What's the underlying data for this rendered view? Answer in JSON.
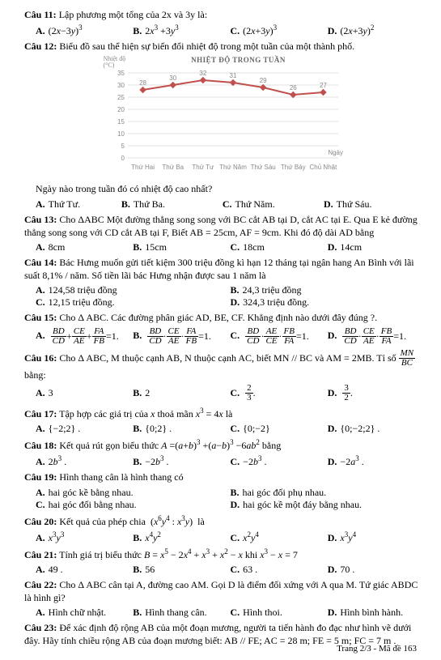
{
  "q11": {
    "header": "Câu 11:",
    "text": "Lập phương một tổng của 2x  và 3y  là:",
    "opts": [
      "(2x−3y)³",
      "2x³ +3y³",
      "(2x+3y)³",
      "(2x+3y)²"
    ]
  },
  "q12": {
    "header": "Câu 12:",
    "text": "Biểu đồ sau thể hiện sự biến đổi nhiệt độ trong một tuần của một thành phố.",
    "chart": {
      "title": "NHIỆT ĐỘ TRONG TUẦN",
      "y_label": "Nhiệt độ (°C)",
      "x_label": "Ngày",
      "categories": [
        "Thứ Hai",
        "Thứ Ba",
        "Thứ Tư",
        "Thứ Năm",
        "Thứ Sáu",
        "Thứ Bảy",
        "Chủ Nhật"
      ],
      "values": [
        28,
        30,
        32,
        31,
        29,
        26,
        27
      ],
      "ylim": [
        0,
        35
      ],
      "ytick_step": 5,
      "line_color": "#c0504d",
      "grid_color": "#d9d9d9",
      "marker_color": "#c0504d",
      "background": "#ffffff",
      "label_color": "#808080",
      "label_fontsize": 8
    },
    "after": "Ngày nào trong tuần đó có nhiệt độ cao nhất?",
    "opts": [
      "Thứ Tư.",
      "Thứ Ba.",
      "Thứ Năm.",
      "Thứ Sáu."
    ]
  },
  "q13": {
    "header": "Câu 13:",
    "text": "Cho ΔABC  Một đường thẳng song song với BC cắt AB tại D, cắt AC tại E. Qua E kẻ đường thẳng song song với CD cắt AB tại F, Biết AB = 25cm, AF = 9cm. Khi đó độ dài AD bằng",
    "opts": [
      "8cm",
      "15cm",
      "18cm",
      "14cm"
    ]
  },
  "q14": {
    "header": "Câu 14:",
    "text": "Bác Hưng muốn gửi tiết kiệm 300 triệu đồng kì hạn 12 tháng tại ngân hang An Bình với lãi suất 8,1% / năm. Số tiền lãi bác Hưng nhận được sau 1 năm là",
    "opts": [
      "124,58 triệu đồng",
      "24,3 triệu đồng",
      "12,15 triệu đồng.",
      "324,3 triệu đồng."
    ]
  },
  "q15": {
    "header": "Câu 15:",
    "text": "Cho Δ ABC. Các đường phân giác AD, BE, CF. Khẳng định nào dưới đây đúng ?.",
    "opts": [
      {
        "a": [
          "BD",
          "CD"
        ],
        "b": [
          "CE",
          "AE"
        ],
        "c": [
          "FA",
          "FB"
        ],
        "eq": "=1."
      },
      {
        "a": [
          "BD",
          "CD"
        ],
        "b": [
          "CE",
          "AE"
        ],
        "c": [
          "FA",
          "FB"
        ],
        "dot": "·",
        "eq": "=1."
      },
      {
        "a": [
          "BD",
          "CD"
        ],
        "b": [
          "AE",
          "CE"
        ],
        "c": [
          "FB",
          "FA"
        ],
        "dot": "·",
        "eq": "=1."
      },
      {
        "a": [
          "BD",
          "CD"
        ],
        "b": [
          "CE",
          "AE"
        ],
        "c": [
          "FB",
          "FA"
        ],
        "dot": "·",
        "eq": "=1."
      }
    ]
  },
  "q16": {
    "header": "Câu 16:",
    "text": "Cho Δ ABC, M thuộc cạnh AB, N thuộc cạnh AC, biết MN // BC và AM = 2MB.   Tỉ số ",
    "frac": [
      "MN",
      "BC"
    ],
    "tail": " bằng:",
    "opts": [
      "3",
      "2",
      "⅔ fraction",
      "3/2 fraction"
    ],
    "optC_num": "2",
    "optC_den": "3",
    "optD_num": "3",
    "optD_den": "2"
  },
  "q17": {
    "header": "Câu 17:",
    "text": "Tập hợp các giá trị của  x  thoả mãn  x³ = 4x  là",
    "opts": [
      "{−2;2} .",
      "{0;2} .",
      "{0;−2}",
      "{0;−2;2} ."
    ]
  },
  "q18": {
    "header": "Câu 18:",
    "text": "Kết quả rút gọn biểu thức  A =(a+b)³ +(a−b)³ −6ab²  bằng",
    "opts": [
      "2b³ .",
      "−2b³ .",
      "−2b³ .",
      "−2a³ ."
    ]
  },
  "q19": {
    "header": "Câu 19:",
    "text": "Hình thang cân là hình thang có",
    "opts": [
      "hai góc kề bằng nhau.",
      "hai góc đối phụ nhau.",
      "hai góc đối bằng nhau.",
      "hai góc kề một đáy bằng nhau."
    ]
  },
  "q20": {
    "header": "Câu 20:",
    "text": "Kết quả của phép chia  (x⁶y⁴ : x³y)  là",
    "opts": [
      "x³y³",
      "x⁴y²",
      "x²y⁴",
      "x³y⁴"
    ]
  },
  "q21": {
    "header": "Câu 21:",
    "text": "Tính giá trị biểu thức  B = x⁵ − 2x⁴ + x³ + x² − x   khi  x³ − x = 7",
    "opts": [
      "49 .",
      "56",
      "63 .",
      "70 ."
    ]
  },
  "q22": {
    "header": "Câu 22:",
    "text": "Cho Δ ABC cân tại A, đường cao AM. Gọi D là điểm đối xứng với A qua M. Tứ giác ABDC là hình gì?",
    "opts": [
      "Hình chữ nhật.",
      "Hình thang cân.",
      "Hình thoi.",
      "Hình bình hành."
    ]
  },
  "q23": {
    "header": "Câu 23:",
    "text": "Để xác định độ rộng  AB  của một đoạn mương, người ta tiến hành đo đạc như hình vẽ dưới đây. Hãy tính chiều rộng  AB  của đoạn mương biết:  AB // FE;  AC = 28 m;  FE = 5 m; FC = 7 m ."
  },
  "letters": [
    "A.",
    "B.",
    "C.",
    "D."
  ],
  "footer": "Trang 2/3 - Mã đề 163"
}
